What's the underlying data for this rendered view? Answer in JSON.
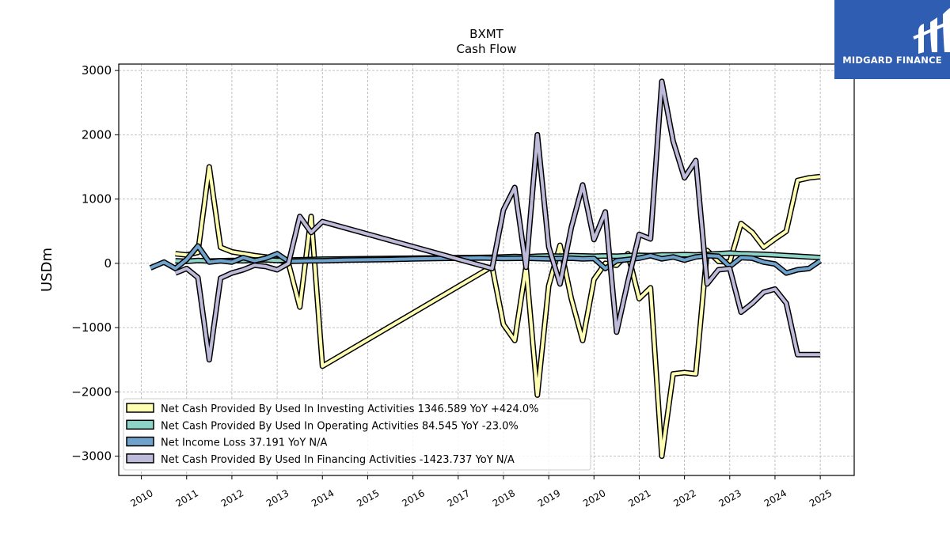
{
  "chart_data": {
    "type": "line",
    "title": "BXMT",
    "subtitle": "Cash Flow",
    "xlabel": "",
    "ylabel": "USDm",
    "xlim": [
      2009.5,
      2025.75
    ],
    "ylim": [
      -3300,
      3100
    ],
    "y_ticks": [
      {
        "value": 3000,
        "label": "3000"
      },
      {
        "value": 2000,
        "label": "2000"
      },
      {
        "value": 1000,
        "label": "1000"
      },
      {
        "value": 0,
        "label": "0"
      },
      {
        "value": -1000,
        "label": "−1000"
      },
      {
        "value": -2000,
        "label": "−2000"
      },
      {
        "value": -3000,
        "label": "−3000"
      }
    ],
    "x_ticks": [
      "2010",
      "2011",
      "2012",
      "2013",
      "2014",
      "2015",
      "2016",
      "2017",
      "2018",
      "2019",
      "2020",
      "2021",
      "2022",
      "2023",
      "2024",
      "2025"
    ],
    "grid": true,
    "legend_position": "lower-left",
    "series": [
      {
        "name": "Net Cash Provided By Used In Investing Activities",
        "legend": "Net Cash Provided By Used In Investing Activities  1346.589 YoY +424.0%",
        "color": "#ffffb3",
        "x": [
          2010.75,
          2011.0,
          2011.25,
          2011.5,
          2011.75,
          2012.0,
          2012.25,
          2012.5,
          2012.75,
          2013.0,
          2013.25,
          2013.5,
          2013.75,
          2014.0,
          2017.75,
          2018.0,
          2018.25,
          2018.5,
          2018.75,
          2019.0,
          2019.25,
          2019.5,
          2019.75,
          2020.0,
          2020.25,
          2020.5,
          2020.75,
          2021.0,
          2021.25,
          2021.5,
          2021.75,
          2022.0,
          2022.25,
          2022.5,
          2022.75,
          2023.0,
          2023.25,
          2023.5,
          2023.75,
          2024.0,
          2024.25,
          2024.5,
          2024.75,
          2025.0
        ],
        "y": [
          150,
          130,
          170,
          1500,
          250,
          180,
          150,
          120,
          100,
          60,
          0,
          -680,
          730,
          -1600,
          -50,
          -950,
          -1200,
          -50,
          -2050,
          -350,
          280,
          -550,
          -1200,
          -250,
          0,
          -30,
          150,
          -550,
          -380,
          -3000,
          -1720,
          -1700,
          -1720,
          200,
          30,
          20,
          620,
          480,
          250,
          380,
          500,
          1290,
          1330,
          1350
        ]
      },
      {
        "name": "Net Cash Provided By Used In Operating Activities",
        "legend": "Net Cash Provided By Used In Operating Activities  84.545 YoY -23.0%",
        "color": "#8dd3c7",
        "x": [
          2010.75,
          2011.0,
          2011.25,
          2011.5,
          2011.75,
          2012.0,
          2012.25,
          2012.5,
          2012.75,
          2013.0,
          2013.25,
          2013.5,
          2013.75,
          2014.0,
          2017.75,
          2018.0,
          2018.25,
          2018.5,
          2018.75,
          2019.0,
          2019.25,
          2019.5,
          2019.75,
          2020.0,
          2020.25,
          2020.5,
          2020.75,
          2021.0,
          2021.25,
          2021.5,
          2021.75,
          2022.0,
          2022.25,
          2022.5,
          2022.75,
          2023.0,
          2023.25,
          2023.5,
          2023.75,
          2024.0,
          2024.25,
          2024.5,
          2024.75,
          2025.0
        ],
        "y": [
          40,
          30,
          45,
          35,
          40,
          45,
          40,
          50,
          55,
          45,
          50,
          55,
          60,
          65,
          95,
          100,
          105,
          100,
          110,
          115,
          110,
          120,
          115,
          110,
          115,
          110,
          120,
          125,
          120,
          130,
          130,
          135,
          130,
          140,
          150,
          160,
          150,
          145,
          140,
          130,
          120,
          110,
          100,
          90
        ]
      },
      {
        "name": "Net Income Loss",
        "legend": "Net Income Loss  37.191 YoY N/A",
        "color": "#6fa3cc",
        "x": [
          2010.2,
          2010.5,
          2010.75,
          2011.0,
          2011.25,
          2011.5,
          2011.75,
          2012.0,
          2012.25,
          2012.5,
          2012.75,
          2013.0,
          2013.25,
          2013.5,
          2013.75,
          2014.0,
          2014.5,
          2015.0,
          2015.5,
          2016.0,
          2016.5,
          2017.0,
          2017.5,
          2018.0,
          2018.5,
          2019.0,
          2019.25,
          2019.5,
          2019.75,
          2020.0,
          2020.25,
          2020.5,
          2020.75,
          2021.0,
          2021.25,
          2021.5,
          2021.75,
          2022.0,
          2022.25,
          2022.5,
          2022.75,
          2023.0,
          2023.25,
          2023.5,
          2023.75,
          2024.0,
          2024.25,
          2024.5,
          2024.75,
          2025.0
        ],
        "y": [
          -70,
          20,
          -80,
          60,
          270,
          20,
          40,
          20,
          90,
          40,
          80,
          150,
          30,
          35,
          40,
          40,
          50,
          55,
          60,
          70,
          75,
          80,
          85,
          75,
          80,
          70,
          75,
          80,
          70,
          75,
          -80,
          40,
          60,
          80,
          120,
          70,
          100,
          50,
          100,
          120,
          110,
          -50,
          90,
          80,
          20,
          -10,
          -150,
          -100,
          -80,
          40
        ]
      },
      {
        "name": "Net Cash Provided By Used In Financing Activities",
        "legend": "Net Cash Provided By Used In Financing Activities  -1423.737 YoY N/A",
        "color": "#bebada",
        "x": [
          2010.75,
          2011.0,
          2011.25,
          2011.5,
          2011.75,
          2012.0,
          2012.25,
          2012.5,
          2012.75,
          2013.0,
          2013.25,
          2013.5,
          2013.75,
          2014.0,
          2017.75,
          2018.0,
          2018.25,
          2018.5,
          2018.75,
          2019.0,
          2019.25,
          2019.5,
          2019.75,
          2020.0,
          2020.25,
          2020.5,
          2020.75,
          2021.0,
          2021.25,
          2021.5,
          2021.75,
          2022.0,
          2022.25,
          2022.5,
          2022.75,
          2023.0,
          2023.25,
          2023.5,
          2023.75,
          2024.0,
          2024.25,
          2024.5,
          2024.75,
          2025.0
        ],
        "y": [
          -150,
          -80,
          -220,
          -1500,
          -230,
          -150,
          -100,
          -30,
          -50,
          -100,
          0,
          730,
          480,
          650,
          -80,
          830,
          1180,
          -60,
          2000,
          260,
          -320,
          560,
          1220,
          370,
          800,
          -1070,
          -280,
          450,
          380,
          2830,
          1900,
          1330,
          1600,
          -320,
          -100,
          -80,
          -760,
          -620,
          -450,
          -400,
          -620,
          -1420,
          -1420,
          -1420
        ]
      }
    ]
  },
  "logo": {
    "text": "MIDGARD FINANCE",
    "colors": {
      "background": "#2f5db2",
      "mark": "#ffffff"
    }
  }
}
